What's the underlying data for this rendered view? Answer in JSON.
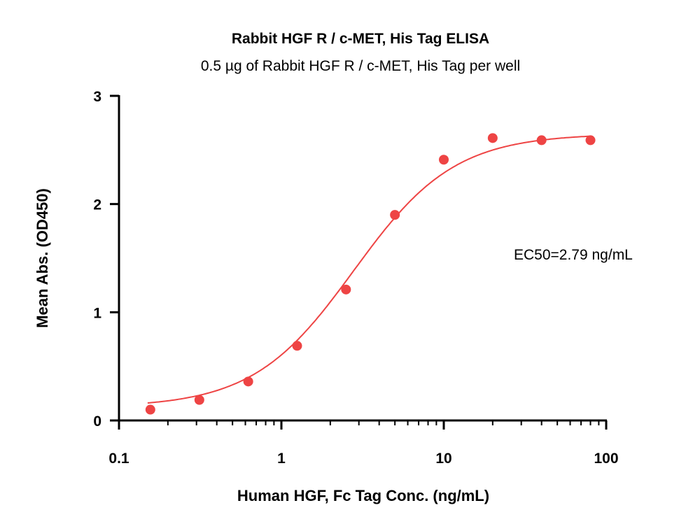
{
  "chart_data": {
    "type": "scatter",
    "title": "Rabbit HGF R / c-MET, His Tag ELISA",
    "subtitle": "0.5 µg of Rabbit HGF R / c-MET, His Tag per well",
    "xlabel": "Human HGF, Fc Tag Conc. (ng/mL)",
    "ylabel": "Mean Abs. (OD450)",
    "xscale": "log",
    "xlim": [
      0.1,
      100
    ],
    "ylim": [
      0,
      3
    ],
    "xticks": [
      "0.1",
      "1",
      "10",
      "100"
    ],
    "yticks": [
      "0",
      "1",
      "2",
      "3"
    ],
    "annotation": "EC50=2.79 ng/mL",
    "series": [
      {
        "name": "Rabbit HGF R / c-MET",
        "color": "#ee4444",
        "x": [
          0.156,
          0.3125,
          0.625,
          1.25,
          2.5,
          5,
          10,
          20,
          40,
          80
        ],
        "y": [
          0.1,
          0.19,
          0.36,
          0.69,
          1.21,
          1.9,
          2.41,
          2.61,
          2.59,
          2.59
        ]
      }
    ],
    "fit": {
      "model": "4PL",
      "bottom": 0.12,
      "top": 2.65,
      "ec50": 2.79,
      "hill": 1.4
    },
    "grid": false
  }
}
